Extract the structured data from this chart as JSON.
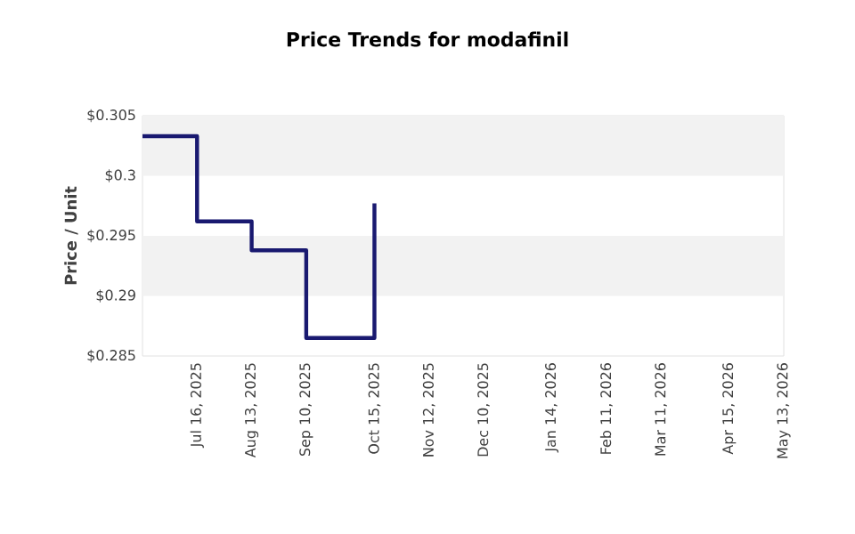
{
  "chart_data": {
    "type": "step",
    "title": "Price Trends for modafinil",
    "ylabel": "Price / Unit",
    "x": [
      "2025-06-18",
      "2025-07-16",
      "2025-08-13",
      "2025-09-10",
      "2025-10-15"
    ],
    "values": [
      0.3033,
      0.2962,
      0.2938,
      0.2865,
      0.2977
    ],
    "color": "#191970",
    "line_style": "solid",
    "xlim": [
      "2025-06-18",
      "2026-05-13"
    ],
    "xticks": [
      {
        "value": "2025-07-16",
        "label": "Jul 16, 2025"
      },
      {
        "value": "2025-08-13",
        "label": "Aug 13, 2025"
      },
      {
        "value": "2025-09-10",
        "label": "Sep 10, 2025"
      },
      {
        "value": "2025-10-15",
        "label": "Oct 15, 2025"
      },
      {
        "value": "2025-11-12",
        "label": "Nov 12, 2025"
      },
      {
        "value": "2025-12-10",
        "label": "Dec 10, 2025"
      },
      {
        "value": "2026-01-14",
        "label": "Jan 14, 2026"
      },
      {
        "value": "2026-02-11",
        "label": "Feb 11, 2026"
      },
      {
        "value": "2026-03-11",
        "label": "Mar 11, 2026"
      },
      {
        "value": "2026-04-15",
        "label": "Apr 15, 2026"
      },
      {
        "value": "2026-05-13",
        "label": "May 13, 2026"
      }
    ],
    "ylim": [
      0.285,
      0.305
    ],
    "yticks": [
      {
        "value": 0.285,
        "label": "$0.285"
      },
      {
        "value": 0.29,
        "label": "$0.29"
      },
      {
        "value": 0.295,
        "label": "$0.295"
      },
      {
        "value": 0.3,
        "label": "$0.3"
      },
      {
        "value": 0.305,
        "label": "$0.305"
      }
    ],
    "bands": [
      {
        "axis": "y",
        "from": 0.3,
        "to": 0.305,
        "color": "#f2f2f2"
      },
      {
        "axis": "y",
        "from": 0.29,
        "to": 0.295,
        "color": "#f2f2f2"
      }
    ]
  }
}
